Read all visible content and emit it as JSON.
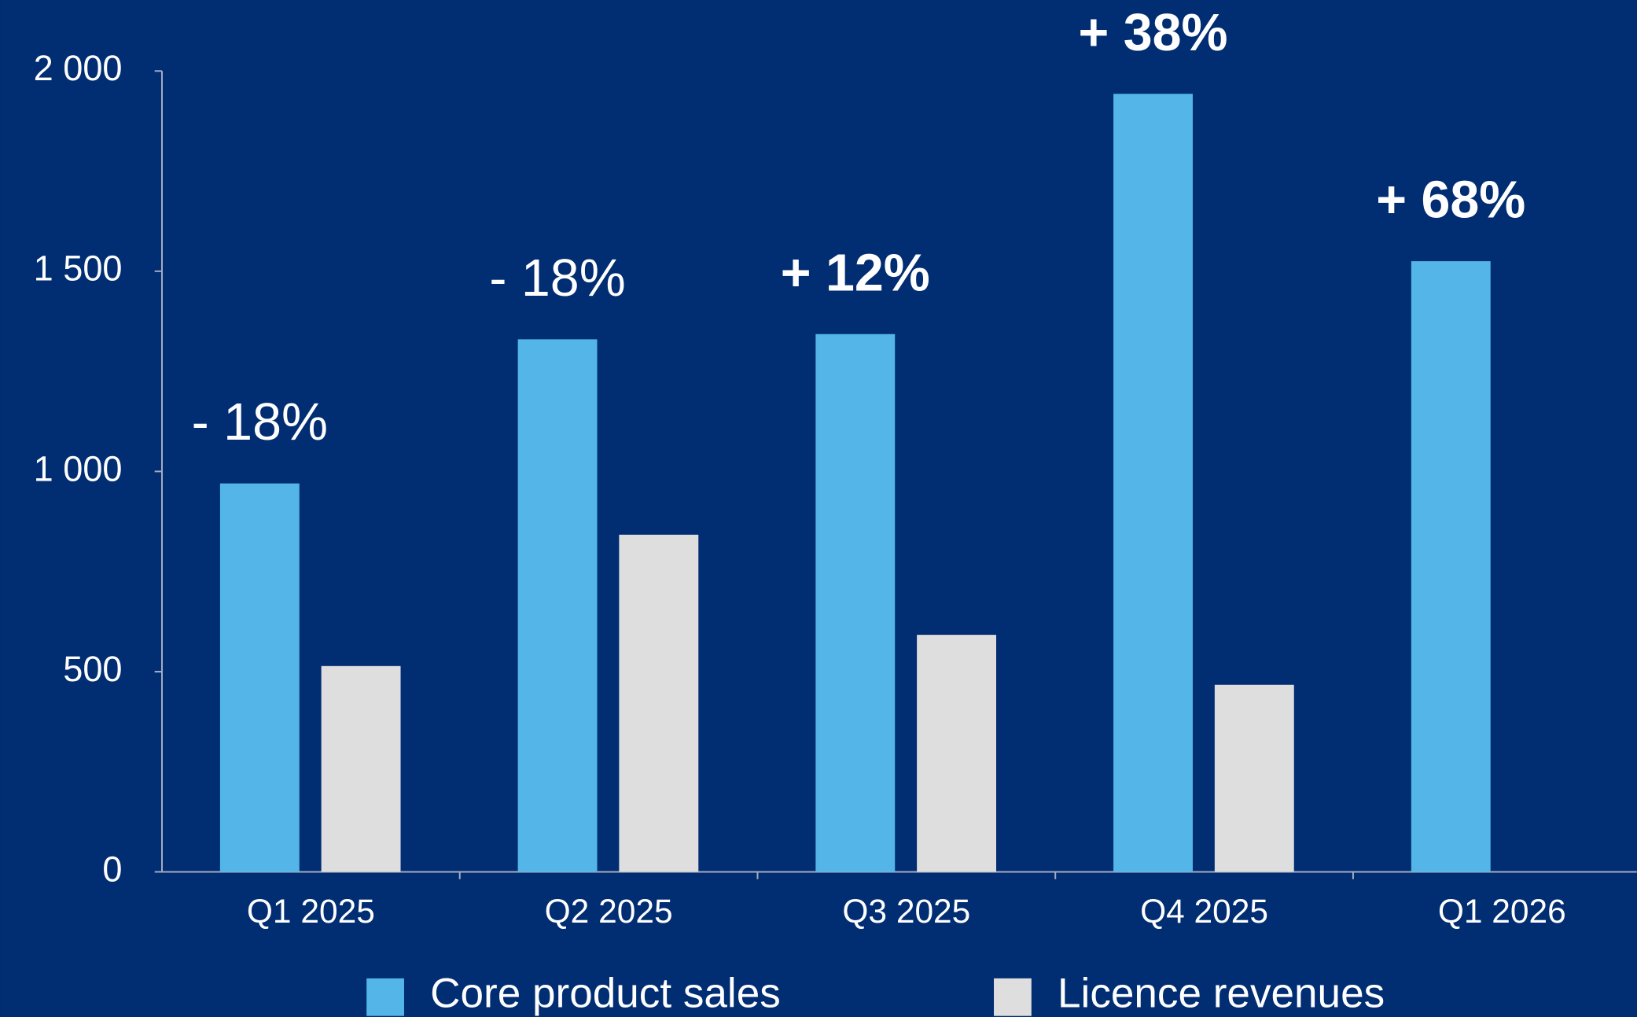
{
  "chart_data": {
    "type": "bar",
    "categories": [
      "Q1 2025",
      "Q2 2025",
      "Q3 2025",
      "Q4 2025",
      "Q1 2026"
    ],
    "series": [
      {
        "name": "Core product sales",
        "color": "#53b5e8",
        "values": [
          970,
          1330,
          1343,
          1943,
          1525
        ]
      },
      {
        "name": "Licence revenues",
        "color": "#dedede",
        "values": [
          514,
          842,
          592,
          467,
          null
        ]
      }
    ],
    "annotations": [
      {
        "text": "- 18%",
        "bold": false
      },
      {
        "text": "- 18%",
        "bold": false
      },
      {
        "text": "+ 12%",
        "bold": true
      },
      {
        "text": "+ 38%",
        "bold": true
      },
      {
        "text": "+ 68%",
        "bold": true
      }
    ],
    "ylim": [
      0,
      2000
    ],
    "yticks": [
      0,
      500,
      {
        "value": 1000,
        "label": "1 000"
      },
      {
        "value": 1500,
        "label": "1 500"
      },
      {
        "value": 2000,
        "label": "2 000"
      }
    ],
    "grid": false,
    "legend": "bottom"
  }
}
